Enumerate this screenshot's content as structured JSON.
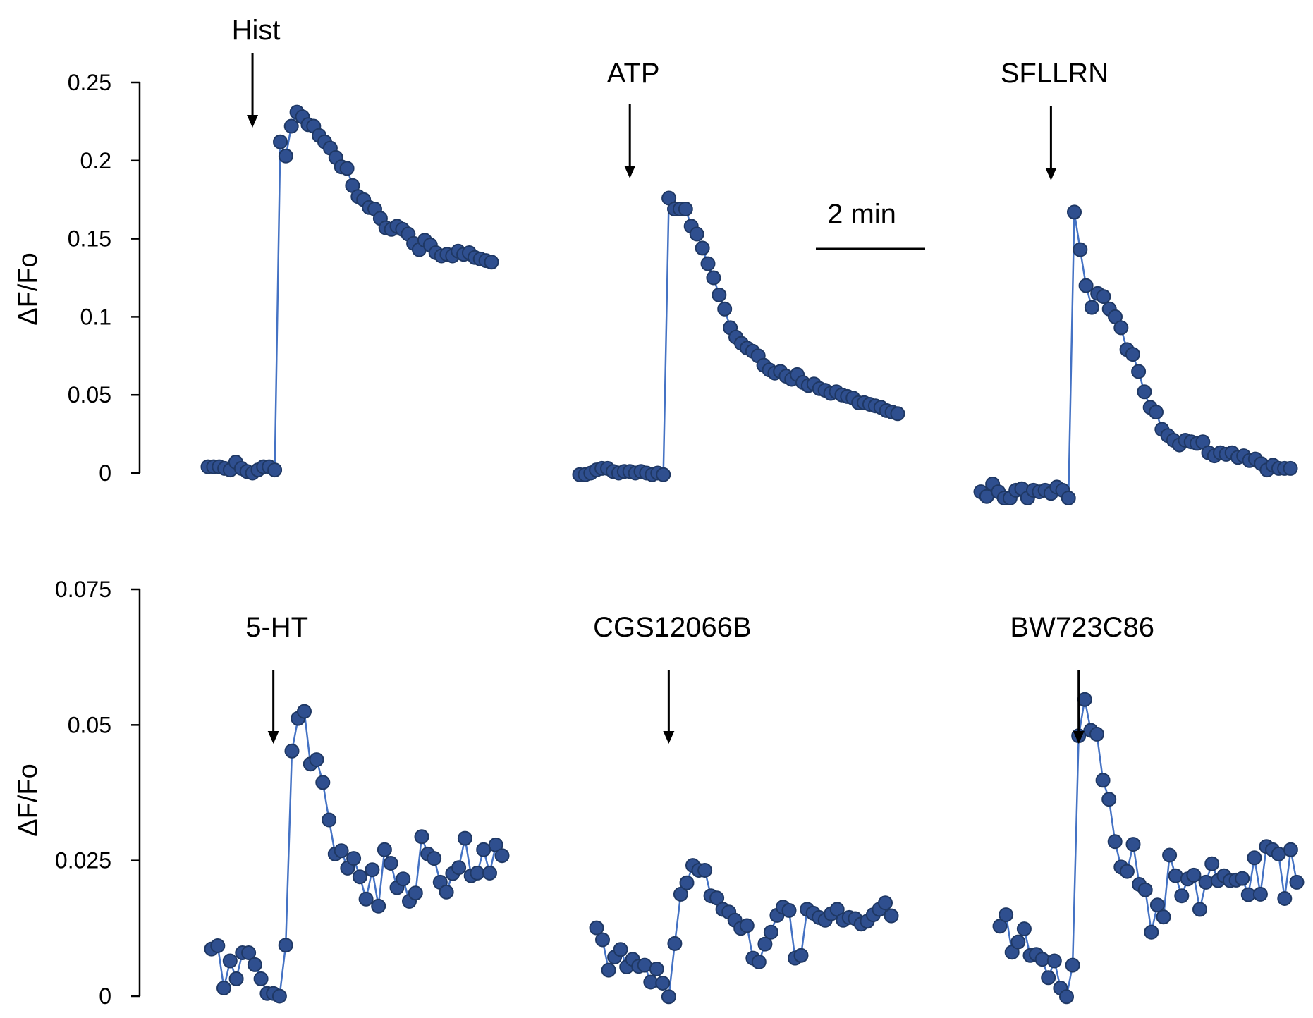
{
  "colors": {
    "line": "#4472C4",
    "marker_fill": "#2F4F8F",
    "marker_stroke": "#1F3864",
    "text": "#000000"
  },
  "scale_bar": {
    "label": "2 min"
  },
  "chart_data": [
    {
      "type": "line",
      "ylabel": "ΔF/Fo",
      "ylim": [
        0,
        0.25
      ],
      "yticks": [
        "0",
        "0.05",
        "0.1",
        "0.15",
        "0.2",
        "0.25"
      ],
      "grid": false,
      "series": [
        {
          "name": "Hist",
          "stimulus_index": 8,
          "values": [
            0.004,
            0.004,
            0.004,
            0.003,
            0.002,
            0.007,
            0.003,
            0.001,
            0.0,
            0.002,
            0.004,
            0.004,
            0.002,
            0.212,
            0.203,
            0.222,
            0.231,
            0.228,
            0.223,
            0.222,
            0.216,
            0.212,
            0.208,
            0.202,
            0.196,
            0.195,
            0.184,
            0.177,
            0.175,
            0.17,
            0.169,
            0.163,
            0.157,
            0.156,
            0.158,
            0.156,
            0.153,
            0.147,
            0.143,
            0.149,
            0.146,
            0.141,
            0.139,
            0.14,
            0.139,
            0.142,
            0.14,
            0.141,
            0.138,
            0.137,
            0.136,
            0.135
          ]
        },
        {
          "name": "ATP",
          "stimulus_index": 9,
          "values": [
            -0.001,
            -0.001,
            0.0,
            0.002,
            0.003,
            0.003,
            0.001,
            0.0,
            0.001,
            0.001,
            0.0,
            0.001,
            0.0,
            -0.001,
            0.0,
            -0.001,
            0.176,
            0.169,
            0.169,
            0.169,
            0.158,
            0.153,
            0.144,
            0.134,
            0.125,
            0.114,
            0.105,
            0.093,
            0.087,
            0.083,
            0.08,
            0.078,
            0.075,
            0.069,
            0.066,
            0.064,
            0.065,
            0.062,
            0.06,
            0.063,
            0.058,
            0.056,
            0.057,
            0.054,
            0.053,
            0.051,
            0.052,
            0.05,
            0.049,
            0.048,
            0.045,
            0.045,
            0.044,
            0.043,
            0.042,
            0.04,
            0.039,
            0.038
          ]
        },
        {
          "name": "SFLLRN",
          "stimulus_index": 12,
          "values": [
            -0.012,
            -0.015,
            -0.007,
            -0.012,
            -0.016,
            -0.016,
            -0.011,
            -0.01,
            -0.016,
            -0.011,
            -0.012,
            -0.011,
            -0.013,
            -0.009,
            -0.011,
            -0.016,
            0.167,
            0.143,
            0.12,
            0.106,
            0.115,
            0.113,
            0.105,
            0.1,
            0.093,
            0.079,
            0.076,
            0.065,
            0.052,
            0.042,
            0.039,
            0.028,
            0.024,
            0.021,
            0.018,
            0.021,
            0.02,
            0.019,
            0.02,
            0.013,
            0.011,
            0.013,
            0.012,
            0.013,
            0.01,
            0.011,
            0.008,
            0.009,
            0.006,
            0.002,
            0.005,
            0.003,
            0.003,
            0.003
          ]
        }
      ]
    },
    {
      "type": "line",
      "ylabel": "ΔF/Fo",
      "ylim": [
        0,
        0.075
      ],
      "yticks": [
        "0",
        "0.025",
        "0.05",
        "0.075"
      ],
      "grid": false,
      "series": [
        {
          "name": "5-HT",
          "stimulus_index": 10,
          "values": [
            0.0087,
            0.0093,
            0.0015,
            0.0065,
            0.0032,
            0.008,
            0.008,
            0.0058,
            0.0032,
            0.0005,
            0.0005,
            0.0,
            0.0094,
            0.0452,
            0.0512,
            0.0525,
            0.0428,
            0.0436,
            0.0394,
            0.0325,
            0.0262,
            0.0268,
            0.0236,
            0.0254,
            0.022,
            0.0179,
            0.0233,
            0.0166,
            0.027,
            0.0245,
            0.02,
            0.0216,
            0.0175,
            0.019,
            0.0294,
            0.0262,
            0.0254,
            0.021,
            0.0192,
            0.0226,
            0.0237,
            0.0291,
            0.0222,
            0.0227,
            0.027,
            0.0227,
            0.0279,
            0.0259
          ]
        },
        {
          "name": "CGS12066B",
          "stimulus_index": 12,
          "values": [
            0.0126,
            0.0104,
            0.0048,
            0.0072,
            0.0086,
            0.0054,
            0.0068,
            0.0055,
            0.0057,
            0.0026,
            0.005,
            0.0024,
            -0.0001,
            0.0097,
            0.0188,
            0.0209,
            0.0241,
            0.0232,
            0.0232,
            0.0185,
            0.0181,
            0.016,
            0.0155,
            0.014,
            0.0125,
            0.013,
            0.007,
            0.0063,
            0.0096,
            0.0118,
            0.0149,
            0.0164,
            0.0158,
            0.007,
            0.0075,
            0.016,
            0.0153,
            0.0145,
            0.014,
            0.0152,
            0.016,
            0.014,
            0.0145,
            0.0143,
            0.0133,
            0.0138,
            0.015,
            0.016,
            0.0172,
            0.0148
          ]
        },
        {
          "name": "BW723C86",
          "stimulus_index": 13,
          "values": [
            0.0129,
            0.015,
            0.0081,
            0.01,
            0.0124,
            0.0075,
            0.0077,
            0.0068,
            0.0034,
            0.0065,
            0.0015,
            -0.0001,
            0.0057,
            0.048,
            0.0547,
            0.049,
            0.0483,
            0.0398,
            0.0363,
            0.0285,
            0.0238,
            0.023,
            0.028,
            0.0206,
            0.0196,
            0.0118,
            0.0168,
            0.0146,
            0.026,
            0.0222,
            0.0185,
            0.0216,
            0.0223,
            0.016,
            0.021,
            0.0244,
            0.0213,
            0.0222,
            0.0213,
            0.0214,
            0.0217,
            0.0187,
            0.0255,
            0.0188,
            0.0276,
            0.027,
            0.0262,
            0.018,
            0.027,
            0.021
          ]
        }
      ]
    }
  ]
}
